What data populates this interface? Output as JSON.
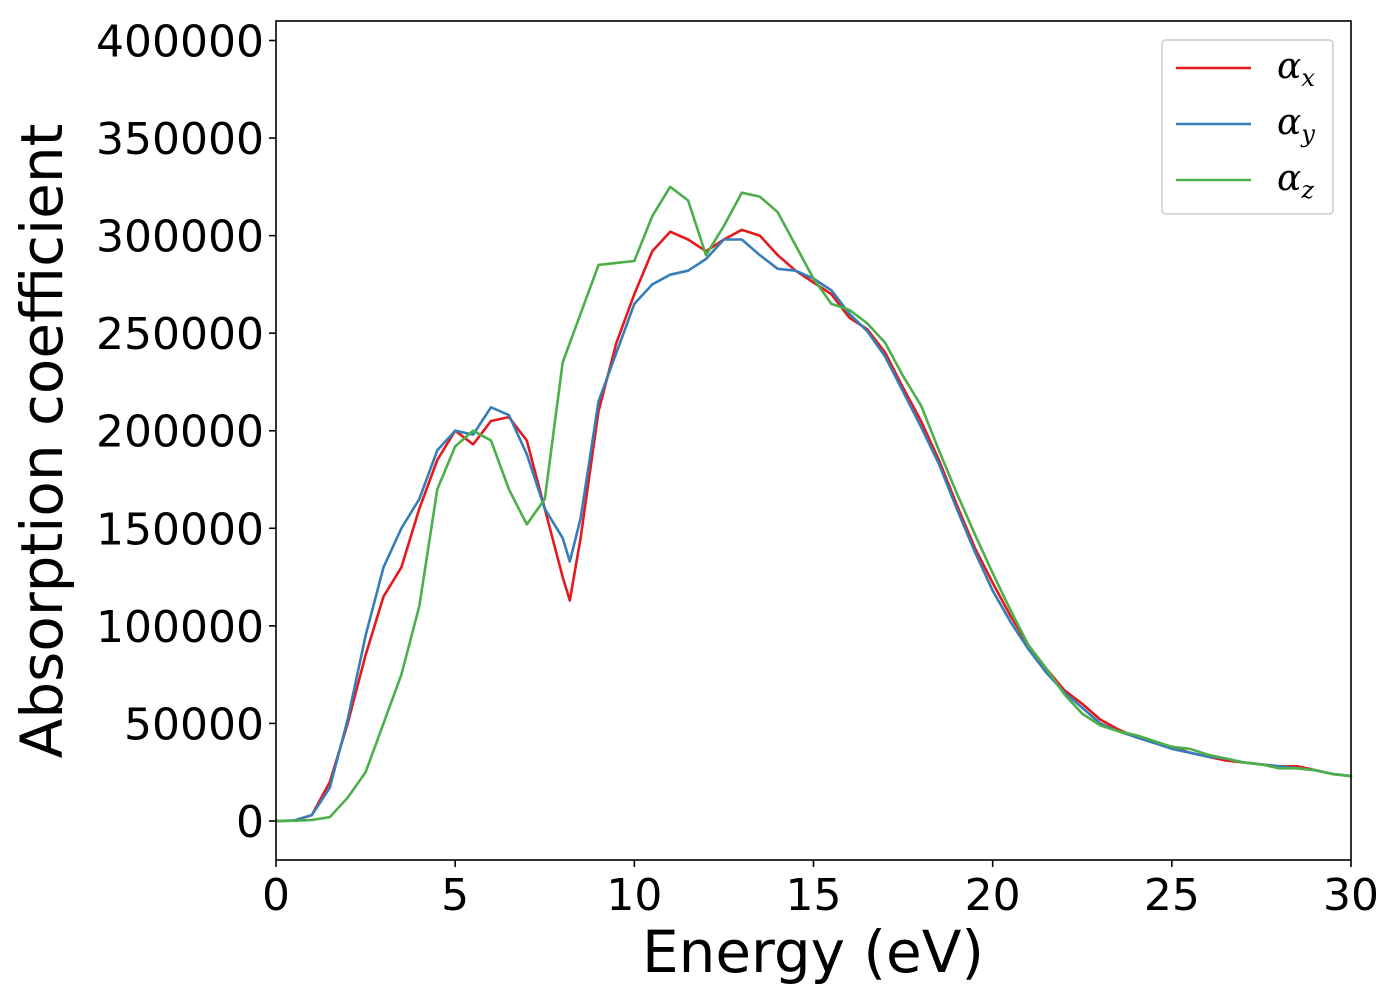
{
  "chart_data": {
    "type": "line",
    "title": "",
    "xlabel": "Energy (eV)",
    "ylabel": "Absorption coefficient",
    "xlim": [
      0,
      30
    ],
    "ylim": [
      -20000,
      410000
    ],
    "xticks": [
      0,
      5,
      10,
      15,
      20,
      25,
      30
    ],
    "xtick_labels": [
      "0",
      "5",
      "10",
      "15",
      "20",
      "25",
      "30"
    ],
    "yticks": [
      0,
      50000,
      100000,
      150000,
      200000,
      250000,
      300000,
      350000,
      400000
    ],
    "ytick_labels": [
      "0",
      "50000",
      "100000",
      "150000",
      "200000",
      "250000",
      "300000",
      "350000",
      "400000"
    ],
    "grid": false,
    "legend_position": "top-right",
    "x": [
      0,
      0.5,
      1.0,
      1.5,
      2.0,
      2.5,
      3.0,
      3.5,
      4.0,
      4.5,
      5.0,
      5.5,
      6.0,
      6.5,
      7.0,
      7.5,
      8.0,
      8.2,
      8.5,
      9.0,
      9.5,
      10.0,
      10.5,
      11.0,
      11.5,
      12.0,
      12.5,
      13.0,
      13.5,
      14.0,
      14.5,
      15.0,
      15.5,
      16.0,
      16.5,
      17.0,
      17.5,
      18.0,
      18.5,
      19.0,
      19.5,
      20.0,
      20.5,
      21.0,
      21.5,
      22.0,
      22.5,
      23.0,
      23.5,
      24.0,
      24.5,
      25.0,
      25.5,
      26.0,
      26.5,
      27.0,
      27.5,
      28.0,
      28.5,
      29.0,
      29.5,
      30.0
    ],
    "series": [
      {
        "name": "α_x",
        "label_main": "α",
        "label_sub": "x",
        "color": "#e41a1c",
        "values": [
          0,
          200,
          3000,
          20000,
          50000,
          85000,
          115000,
          130000,
          160000,
          185000,
          200000,
          193000,
          205000,
          207000,
          195000,
          160000,
          125000,
          113000,
          145000,
          210000,
          245000,
          270000,
          292000,
          302000,
          298000,
          292000,
          298000,
          303000,
          300000,
          290000,
          282000,
          276000,
          270000,
          258000,
          252000,
          240000,
          222000,
          205000,
          185000,
          162000,
          140000,
          122000,
          105000,
          90000,
          78000,
          67000,
          60000,
          52000,
          47000,
          43000,
          40000,
          38000,
          35000,
          33000,
          31000,
          30000,
          29000,
          28000,
          28000,
          26000,
          24000,
          23000
        ]
      },
      {
        "name": "α_y",
        "label_main": "α",
        "label_sub": "y",
        "color": "#377eb8",
        "values": [
          0,
          200,
          3000,
          17000,
          52000,
          95000,
          130000,
          150000,
          165000,
          190000,
          200000,
          198000,
          212000,
          208000,
          188000,
          160000,
          145000,
          133000,
          155000,
          215000,
          240000,
          265000,
          275000,
          280000,
          282000,
          288000,
          298000,
          298000,
          290000,
          283000,
          282000,
          278000,
          272000,
          260000,
          251000,
          238000,
          220000,
          202000,
          183000,
          160000,
          138000,
          118000,
          102000,
          88000,
          76000,
          66000,
          58000,
          50000,
          46000,
          43000,
          40000,
          37000,
          35000,
          33000,
          32000,
          30000,
          29000,
          28000,
          27000,
          26000,
          24000,
          23000
        ]
      },
      {
        "name": "α_z",
        "label_main": "α",
        "label_sub": "z",
        "color": "#4daf4a",
        "values": [
          0,
          100,
          500,
          2000,
          12000,
          25000,
          50000,
          75000,
          110000,
          170000,
          192000,
          200000,
          195000,
          170000,
          152000,
          165000,
          235000,
          245000,
          260000,
          285000,
          286000,
          287000,
          310000,
          325000,
          318000,
          290000,
          305000,
          322000,
          320000,
          312000,
          295000,
          278000,
          265000,
          262000,
          255000,
          245000,
          228000,
          213000,
          190000,
          168000,
          147000,
          127000,
          108000,
          90000,
          78000,
          65000,
          55000,
          49000,
          46000,
          44000,
          41000,
          38000,
          37000,
          34000,
          32000,
          30000,
          29000,
          27000,
          27000,
          26000,
          24000,
          23000
        ]
      }
    ]
  }
}
